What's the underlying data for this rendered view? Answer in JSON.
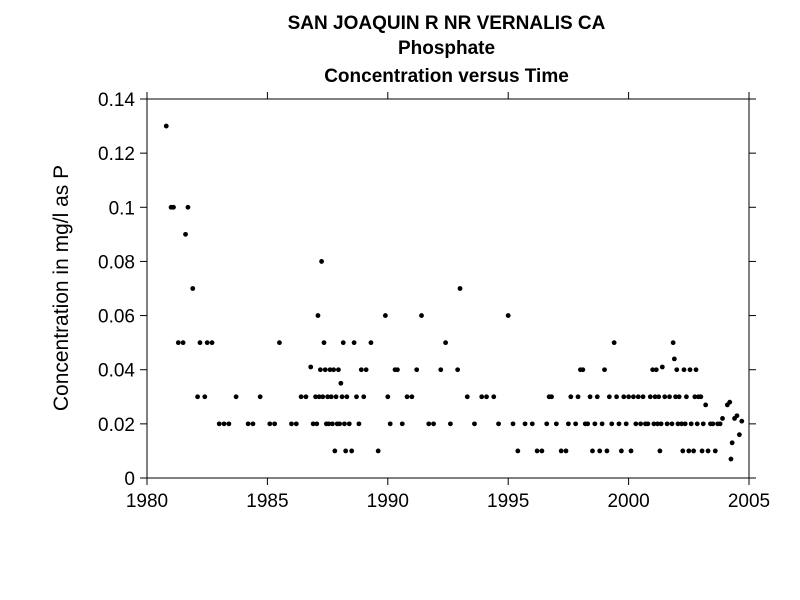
{
  "chart_data": {
    "type": "scatter",
    "title": "SAN JOAQUIN R NR VERNALIS CA",
    "subtitle": "Phosphate",
    "subtitle2": "Concentration versus Time",
    "xlabel": "",
    "ylabel": "Concentration in mg/l as P",
    "xlim": [
      1980,
      2005
    ],
    "ylim": [
      0,
      0.14
    ],
    "xticks": [
      "1980",
      "1985",
      "1990",
      "1995",
      "2000",
      "2005"
    ],
    "yticks": [
      "0",
      "0.02",
      "0.04",
      "0.06",
      "0.08",
      "0.1",
      "0.12",
      "0.14"
    ],
    "grid": false,
    "marker_color": "#000000",
    "points": [
      [
        1980.8,
        0.13
      ],
      [
        1981.0,
        0.1
      ],
      [
        1981.1,
        0.1
      ],
      [
        1981.3,
        0.05
      ],
      [
        1981.5,
        0.05
      ],
      [
        1981.6,
        0.09
      ],
      [
        1981.7,
        0.1
      ],
      [
        1981.9,
        0.07
      ],
      [
        1982.1,
        0.03
      ],
      [
        1982.2,
        0.05
      ],
      [
        1982.4,
        0.03
      ],
      [
        1982.5,
        0.05
      ],
      [
        1982.7,
        0.05
      ],
      [
        1983.0,
        0.02
      ],
      [
        1983.2,
        0.02
      ],
      [
        1983.4,
        0.02
      ],
      [
        1983.7,
        0.03
      ],
      [
        1984.2,
        0.02
      ],
      [
        1984.4,
        0.02
      ],
      [
        1984.7,
        0.03
      ],
      [
        1985.1,
        0.02
      ],
      [
        1985.3,
        0.02
      ],
      [
        1985.5,
        0.05
      ],
      [
        1986.0,
        0.02
      ],
      [
        1986.2,
        0.02
      ],
      [
        1986.4,
        0.03
      ],
      [
        1986.6,
        0.03
      ],
      [
        1986.8,
        0.041
      ],
      [
        1986.9,
        0.02
      ],
      [
        1987.0,
        0.03
      ],
      [
        1987.05,
        0.02
      ],
      [
        1987.1,
        0.06
      ],
      [
        1987.15,
        0.03
      ],
      [
        1987.2,
        0.04
      ],
      [
        1987.25,
        0.08
      ],
      [
        1987.3,
        0.03
      ],
      [
        1987.35,
        0.05
      ],
      [
        1987.4,
        0.04
      ],
      [
        1987.45,
        0.02
      ],
      [
        1987.5,
        0.03
      ],
      [
        1987.55,
        0.02
      ],
      [
        1987.6,
        0.04
      ],
      [
        1987.65,
        0.03
      ],
      [
        1987.7,
        0.02
      ],
      [
        1987.75,
        0.04
      ],
      [
        1987.8,
        0.01
      ],
      [
        1987.85,
        0.03
      ],
      [
        1987.9,
        0.02
      ],
      [
        1987.95,
        0.04
      ],
      [
        1988.0,
        0.02
      ],
      [
        1988.05,
        0.035
      ],
      [
        1988.1,
        0.03
      ],
      [
        1988.15,
        0.05
      ],
      [
        1988.2,
        0.02
      ],
      [
        1988.25,
        0.01
      ],
      [
        1988.3,
        0.03
      ],
      [
        1988.4,
        0.02
      ],
      [
        1988.5,
        0.01
      ],
      [
        1988.6,
        0.05
      ],
      [
        1988.7,
        0.03
      ],
      [
        1988.8,
        0.02
      ],
      [
        1988.9,
        0.04
      ],
      [
        1989.0,
        0.03
      ],
      [
        1989.1,
        0.04
      ],
      [
        1989.3,
        0.05
      ],
      [
        1989.6,
        0.01
      ],
      [
        1989.9,
        0.06
      ],
      [
        1990.0,
        0.03
      ],
      [
        1990.1,
        0.02
      ],
      [
        1990.3,
        0.04
      ],
      [
        1990.4,
        0.04
      ],
      [
        1990.6,
        0.02
      ],
      [
        1990.8,
        0.03
      ],
      [
        1991.0,
        0.03
      ],
      [
        1991.2,
        0.04
      ],
      [
        1991.4,
        0.06
      ],
      [
        1991.7,
        0.02
      ],
      [
        1991.9,
        0.02
      ],
      [
        1992.2,
        0.04
      ],
      [
        1992.4,
        0.05
      ],
      [
        1992.6,
        0.02
      ],
      [
        1992.9,
        0.04
      ],
      [
        1993.0,
        0.07
      ],
      [
        1993.3,
        0.03
      ],
      [
        1993.6,
        0.02
      ],
      [
        1993.9,
        0.03
      ],
      [
        1994.1,
        0.03
      ],
      [
        1994.4,
        0.03
      ],
      [
        1994.6,
        0.02
      ],
      [
        1995.0,
        0.06
      ],
      [
        1995.2,
        0.02
      ],
      [
        1995.4,
        0.01
      ],
      [
        1995.7,
        0.02
      ],
      [
        1996.0,
        0.02
      ],
      [
        1996.2,
        0.01
      ],
      [
        1996.4,
        0.01
      ],
      [
        1996.6,
        0.02
      ],
      [
        1996.7,
        0.03
      ],
      [
        1996.8,
        0.03
      ],
      [
        1997.0,
        0.02
      ],
      [
        1997.2,
        0.01
      ],
      [
        1997.4,
        0.01
      ],
      [
        1997.5,
        0.02
      ],
      [
        1997.6,
        0.03
      ],
      [
        1997.8,
        0.02
      ],
      [
        1997.9,
        0.03
      ],
      [
        1998.0,
        0.04
      ],
      [
        1998.1,
        0.04
      ],
      [
        1998.2,
        0.02
      ],
      [
        1998.3,
        0.02
      ],
      [
        1998.4,
        0.03
      ],
      [
        1998.5,
        0.01
      ],
      [
        1998.6,
        0.02
      ],
      [
        1998.7,
        0.03
      ],
      [
        1998.8,
        0.01
      ],
      [
        1998.9,
        0.02
      ],
      [
        1999.0,
        0.04
      ],
      [
        1999.1,
        0.01
      ],
      [
        1999.2,
        0.03
      ],
      [
        1999.3,
        0.02
      ],
      [
        1999.4,
        0.05
      ],
      [
        1999.5,
        0.03
      ],
      [
        1999.6,
        0.02
      ],
      [
        1999.7,
        0.01
      ],
      [
        1999.8,
        0.03
      ],
      [
        1999.9,
        0.02
      ],
      [
        2000.0,
        0.03
      ],
      [
        2000.1,
        0.01
      ],
      [
        2000.2,
        0.03
      ],
      [
        2000.3,
        0.02
      ],
      [
        2000.4,
        0.03
      ],
      [
        2000.5,
        0.02
      ],
      [
        2000.6,
        0.03
      ],
      [
        2000.7,
        0.02
      ],
      [
        2000.8,
        0.02
      ],
      [
        2000.9,
        0.03
      ],
      [
        2001.0,
        0.04
      ],
      [
        2001.05,
        0.02
      ],
      [
        2001.1,
        0.03
      ],
      [
        2001.15,
        0.04
      ],
      [
        2001.2,
        0.02
      ],
      [
        2001.25,
        0.03
      ],
      [
        2001.3,
        0.01
      ],
      [
        2001.35,
        0.02
      ],
      [
        2001.4,
        0.041
      ],
      [
        2001.5,
        0.03
      ],
      [
        2001.6,
        0.02
      ],
      [
        2001.7,
        0.03
      ],
      [
        2001.8,
        0.02
      ],
      [
        2001.85,
        0.05
      ],
      [
        2001.9,
        0.044
      ],
      [
        2001.95,
        0.03
      ],
      [
        2002.0,
        0.04
      ],
      [
        2002.05,
        0.02
      ],
      [
        2002.1,
        0.03
      ],
      [
        2002.2,
        0.02
      ],
      [
        2002.25,
        0.01
      ],
      [
        2002.3,
        0.04
      ],
      [
        2002.35,
        0.02
      ],
      [
        2002.4,
        0.03
      ],
      [
        2002.5,
        0.01
      ],
      [
        2002.55,
        0.04
      ],
      [
        2002.6,
        0.02
      ],
      [
        2002.7,
        0.01
      ],
      [
        2002.75,
        0.03
      ],
      [
        2002.8,
        0.04
      ],
      [
        2002.85,
        0.02
      ],
      [
        2002.9,
        0.03
      ],
      [
        2003.0,
        0.03
      ],
      [
        2003.05,
        0.01
      ],
      [
        2003.1,
        0.02
      ],
      [
        2003.2,
        0.027
      ],
      [
        2003.3,
        0.01
      ],
      [
        2003.4,
        0.02
      ],
      [
        2003.5,
        0.02
      ],
      [
        2003.6,
        0.01
      ],
      [
        2003.7,
        0.02
      ],
      [
        2003.8,
        0.02
      ],
      [
        2003.9,
        0.022
      ],
      [
        2004.1,
        0.027
      ],
      [
        2004.2,
        0.028
      ],
      [
        2004.25,
        0.007
      ],
      [
        2004.3,
        0.013
      ],
      [
        2004.4,
        0.022
      ],
      [
        2004.5,
        0.023
      ],
      [
        2004.6,
        0.016
      ],
      [
        2004.7,
        0.021
      ]
    ]
  }
}
